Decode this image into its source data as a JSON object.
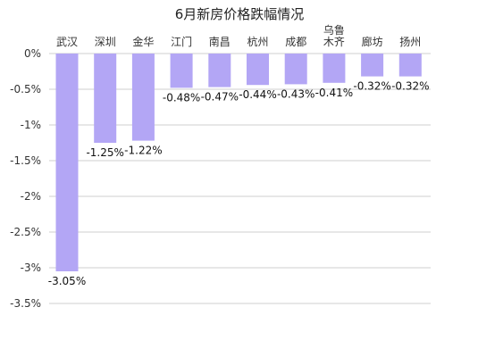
{
  "chart_data": {
    "type": "bar",
    "title": "6月新房价格跌幅情况",
    "categories": [
      "武汉",
      "深圳",
      "金华",
      "江门",
      "南昌",
      "杭州",
      "成都",
      "乌鲁木齐",
      "廊坊",
      "扬州"
    ],
    "category_label_lines": [
      [
        "武汉"
      ],
      [
        "深圳"
      ],
      [
        "金华"
      ],
      [
        "江门"
      ],
      [
        "南昌"
      ],
      [
        "杭州"
      ],
      [
        "成都"
      ],
      [
        "乌鲁",
        "木齐"
      ],
      [
        "廊坊"
      ],
      [
        "扬州"
      ]
    ],
    "values": [
      -3.05,
      -1.25,
      -1.22,
      -0.48,
      -0.47,
      -0.44,
      -0.43,
      -0.41,
      -0.32,
      -0.32
    ],
    "data_labels": [
      "-3.05%",
      "-1.25%",
      "-1.22%",
      "-0.48%",
      "-0.47%",
      "-0.44%",
      "-0.43%",
      "-0.41%",
      "-0.32%",
      "-0.32%"
    ],
    "yticks": [
      0,
      -0.5,
      -1,
      -1.5,
      -2,
      -2.5,
      -3,
      -3.5
    ],
    "ytick_labels": [
      "0%",
      "-0.5%",
      "-1%",
      "-1.5%",
      "-2%",
      "-2.5%",
      "-3%",
      "-3.5%"
    ],
    "ylim": [
      -3.5,
      0
    ],
    "grid": true,
    "category_axis_position": "top",
    "xlabel": "",
    "ylabel": "",
    "bar_color": "#b3a6f5"
  }
}
